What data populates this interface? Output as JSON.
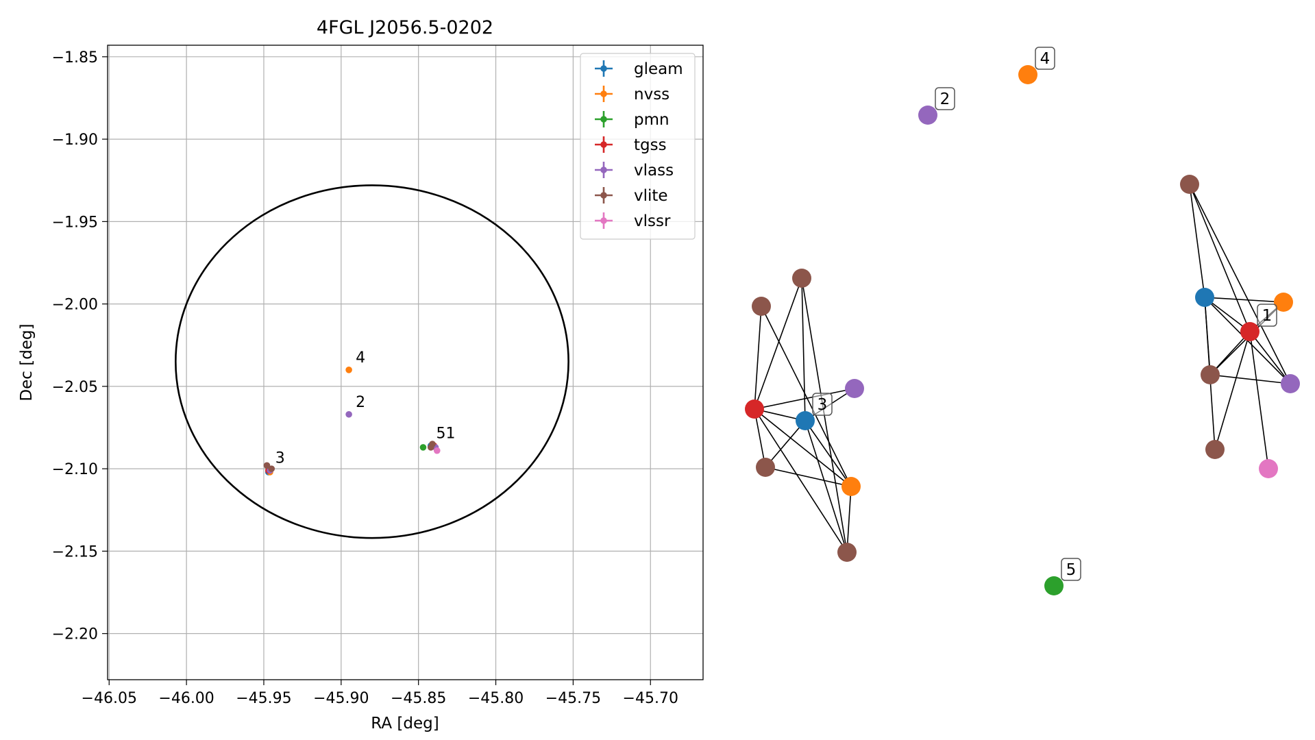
{
  "chart_data": [
    {
      "type": "scatter",
      "title": "4FGL J2056.5-0202",
      "xlabel": "RA [deg]",
      "ylabel": "Dec [deg]",
      "xlim": [
        -46.051,
        -45.666
      ],
      "ylim": [
        -2.228,
        -1.843
      ],
      "x_ticks": [
        -46.05,
        -46.0,
        -45.95,
        -45.9,
        -45.85,
        -45.8,
        -45.75,
        -45.7
      ],
      "x_tick_labels": [
        "−46.05",
        "−46.00",
        "−45.95",
        "−45.90",
        "−45.85",
        "−45.80",
        "−45.75",
        "−45.70"
      ],
      "y_ticks": [
        -1.85,
        -1.9,
        -1.95,
        -2.0,
        -2.05,
        -2.1,
        -2.15,
        -2.2
      ],
      "y_tick_labels": [
        "−1.85",
        "−1.90",
        "−1.95",
        "−2.00",
        "−2.05",
        "−2.10",
        "−2.15",
        "−2.20"
      ],
      "grid": true,
      "legend_position": "top-right",
      "ellipse": {
        "center": [
          -45.88,
          -2.035
        ],
        "rx": 0.127,
        "ry": 0.107,
        "color": "#000000"
      },
      "series": [
        {
          "name": "gleam",
          "color": "#1f77b4",
          "points": [
            [
              -45.947,
              -2.102
            ],
            [
              -45.842,
              -2.086
            ]
          ]
        },
        {
          "name": "nvss",
          "color": "#ff7f0e",
          "points": [
            [
              -45.895,
              -2.04
            ],
            [
              -45.84,
              -2.086
            ],
            [
              -45.946,
              -2.102
            ]
          ]
        },
        {
          "name": "pmn",
          "color": "#2ca02c",
          "points": [
            [
              -45.847,
              -2.087
            ]
          ]
        },
        {
          "name": "tgss",
          "color": "#d62728",
          "points": [
            [
              -45.84,
              -2.086
            ],
            [
              -45.947,
              -2.101
            ]
          ]
        },
        {
          "name": "vlass",
          "color": "#9467bd",
          "points": [
            [
              -45.895,
              -2.067
            ],
            [
              -45.839,
              -2.087
            ],
            [
              -45.946,
              -2.101
            ]
          ]
        },
        {
          "name": "vlite",
          "color": "#8c564b",
          "points": [
            [
              -45.948,
              -2.098
            ],
            [
              -45.945,
              -2.1
            ],
            [
              -45.841,
              -2.085
            ],
            [
              -45.842,
              -2.087
            ]
          ]
        },
        {
          "name": "vlssr",
          "color": "#e377c2",
          "points": [
            [
              -45.838,
              -2.089
            ]
          ]
        }
      ],
      "annotations": [
        {
          "text": "4",
          "x": -45.895,
          "y": -2.04
        },
        {
          "text": "2",
          "x": -45.895,
          "y": -2.067
        },
        {
          "text": "51",
          "x": -45.843,
          "y": -2.086
        },
        {
          "text": "3",
          "x": -45.947,
          "y": -2.101
        }
      ]
    },
    {
      "type": "network",
      "nodes": [
        {
          "id": "n1",
          "color": "#8c564b"
        },
        {
          "id": "n2",
          "color": "#1f77b4"
        },
        {
          "id": "n3",
          "color": "#ff7f0e"
        },
        {
          "id": "n4",
          "color": "#d62728",
          "label": "1"
        },
        {
          "id": "n5",
          "color": "#8c564b"
        },
        {
          "id": "n6",
          "color": "#9467bd"
        },
        {
          "id": "n7",
          "color": "#8c564b"
        },
        {
          "id": "n8",
          "color": "#e377c2"
        },
        {
          "id": "n9",
          "color": "#9467bd",
          "label": "2"
        },
        {
          "id": "n10",
          "color": "#ff7f0e",
          "label": "4"
        },
        {
          "id": "n11",
          "color": "#2ca02c",
          "label": "5"
        },
        {
          "id": "n12",
          "color": "#8c564b"
        },
        {
          "id": "n13",
          "color": "#8c564b"
        },
        {
          "id": "n14",
          "color": "#d62728"
        },
        {
          "id": "n15",
          "color": "#1f77b4",
          "label": "3"
        },
        {
          "id": "n16",
          "color": "#9467bd"
        },
        {
          "id": "n17",
          "color": "#8c564b"
        },
        {
          "id": "n18",
          "color": "#ff7f0e"
        },
        {
          "id": "n19",
          "color": "#8c564b"
        }
      ],
      "edges": [
        [
          "n1",
          "n2"
        ],
        [
          "n1",
          "n4"
        ],
        [
          "n1",
          "n6"
        ],
        [
          "n2",
          "n3"
        ],
        [
          "n2",
          "n4"
        ],
        [
          "n2",
          "n5"
        ],
        [
          "n2",
          "n6"
        ],
        [
          "n2",
          "n7"
        ],
        [
          "n3",
          "n4"
        ],
        [
          "n3",
          "n5"
        ],
        [
          "n4",
          "n5"
        ],
        [
          "n4",
          "n6"
        ],
        [
          "n4",
          "n7"
        ],
        [
          "n4",
          "n8"
        ],
        [
          "n5",
          "n6"
        ],
        [
          "n12",
          "n14"
        ],
        [
          "n12",
          "n15"
        ],
        [
          "n12",
          "n19"
        ],
        [
          "n13",
          "n14"
        ],
        [
          "n13",
          "n18"
        ],
        [
          "n14",
          "n15"
        ],
        [
          "n14",
          "n16"
        ],
        [
          "n14",
          "n17"
        ],
        [
          "n14",
          "n18"
        ],
        [
          "n14",
          "n19"
        ],
        [
          "n15",
          "n16"
        ],
        [
          "n15",
          "n17"
        ],
        [
          "n15",
          "n18"
        ],
        [
          "n15",
          "n19"
        ],
        [
          "n17",
          "n18"
        ],
        [
          "n18",
          "n19"
        ]
      ]
    }
  ]
}
